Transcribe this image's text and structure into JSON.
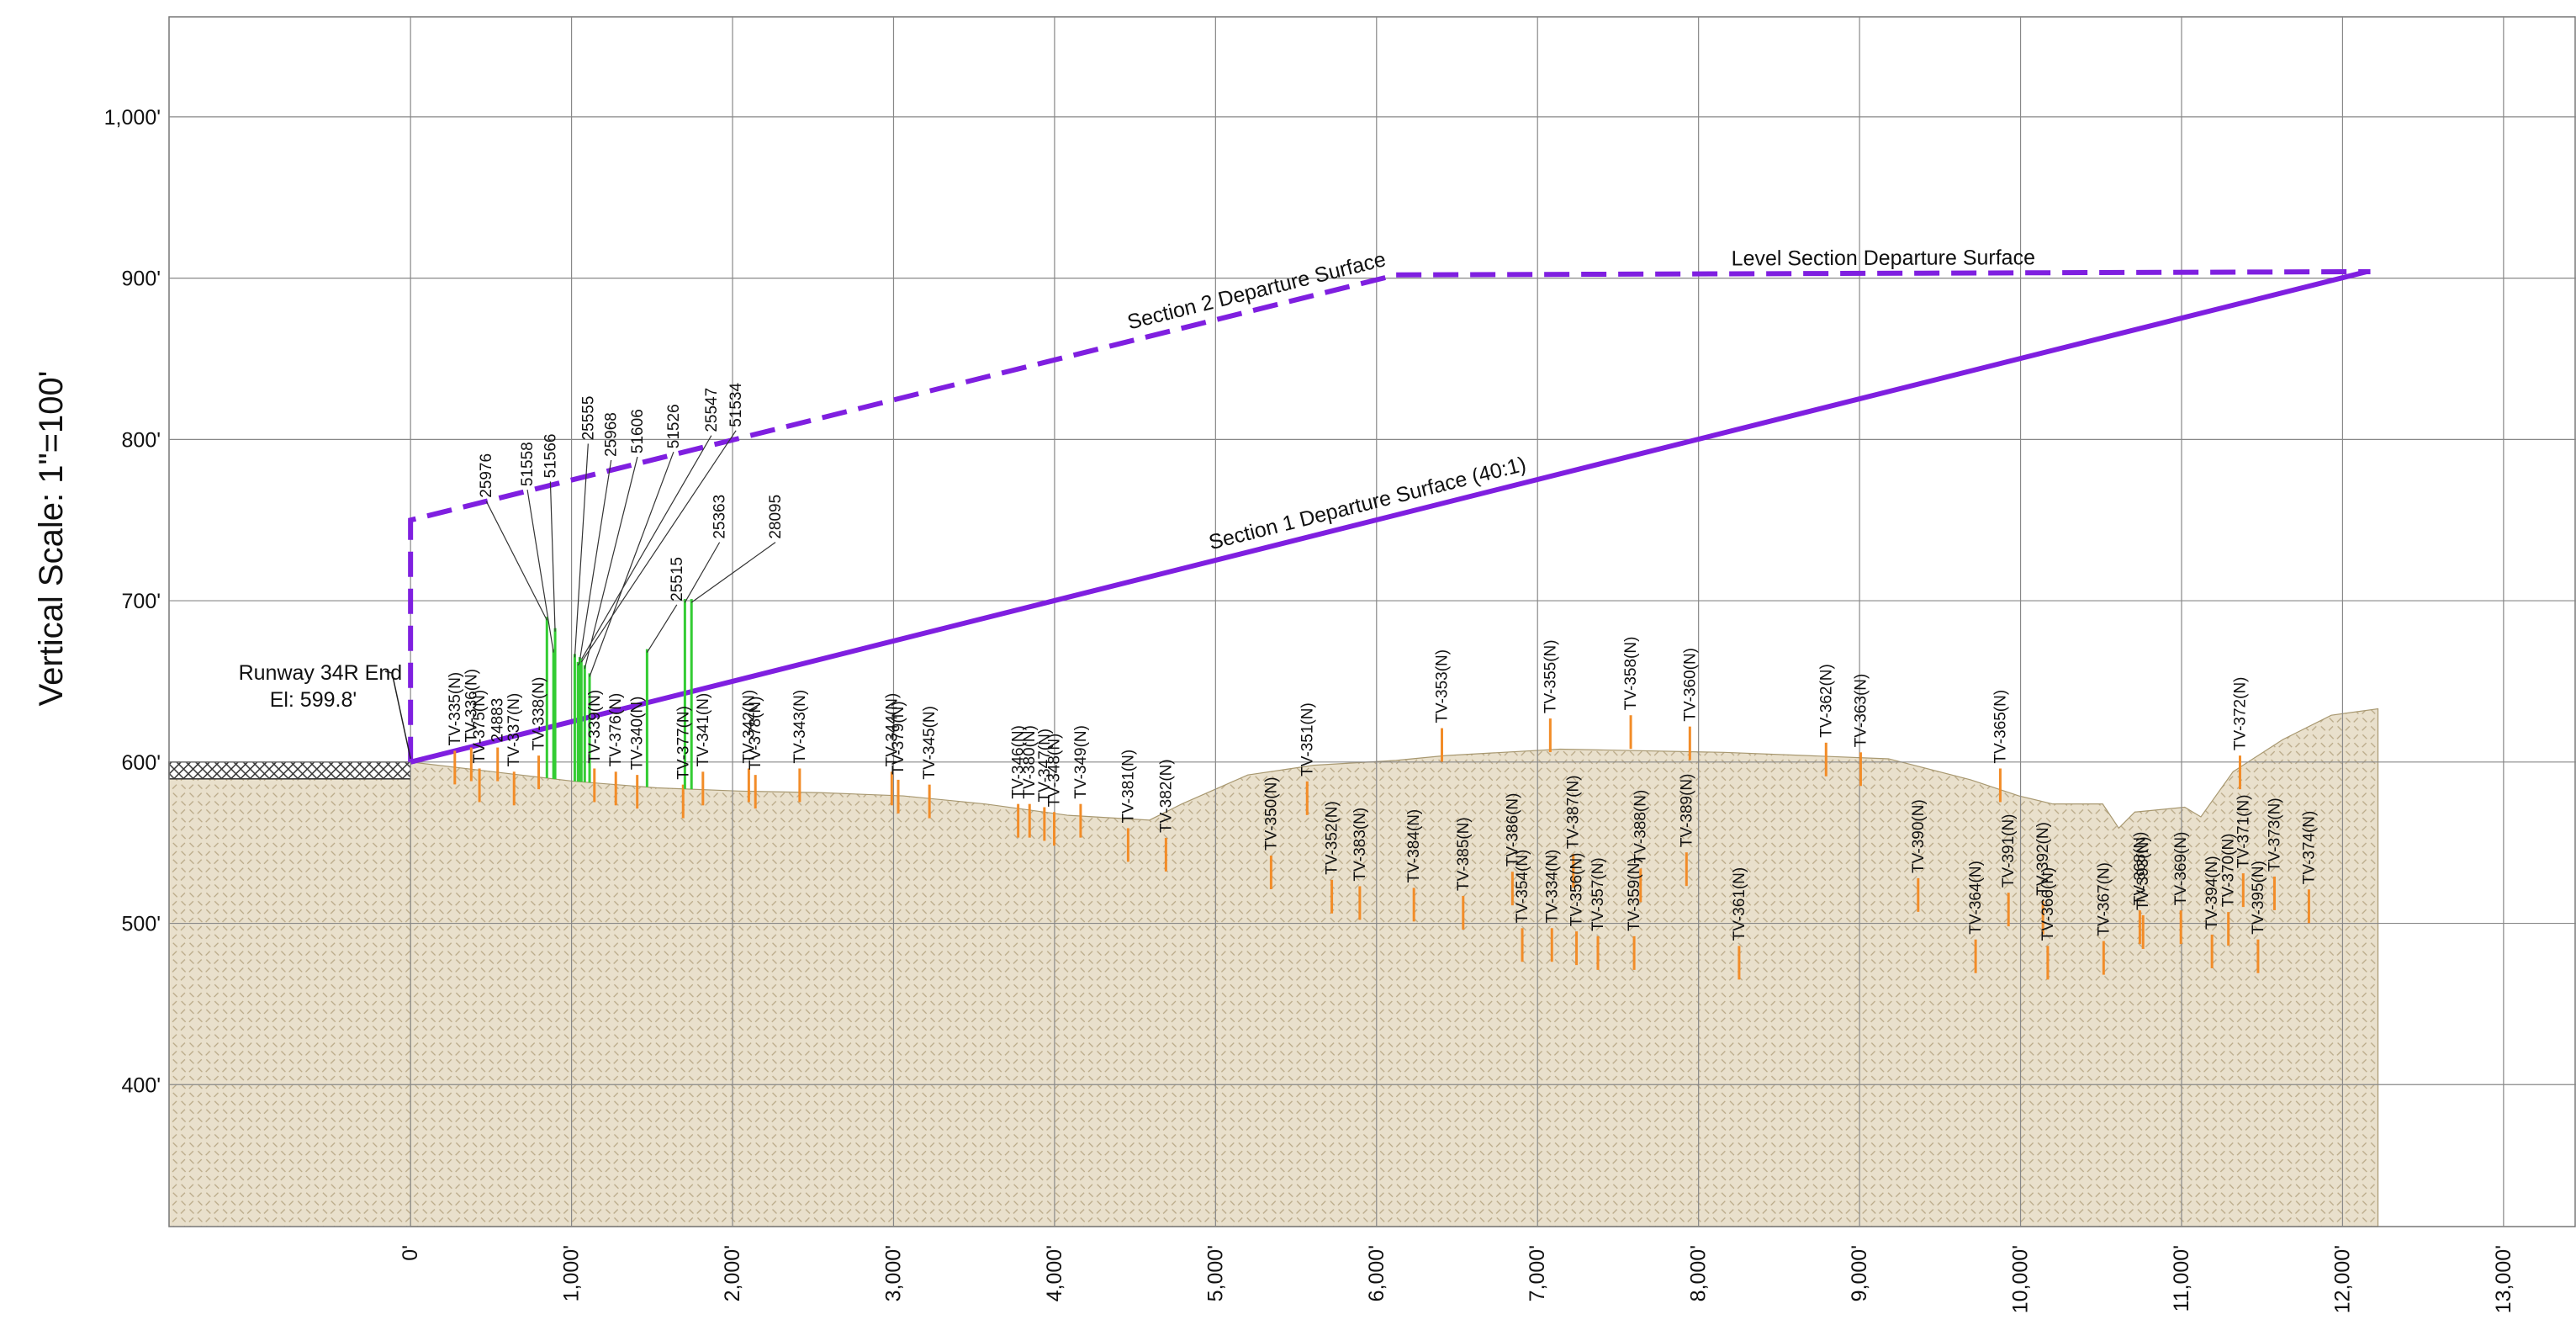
{
  "chart_data": {
    "type": "profile",
    "y_label": "Vertical Scale: 1\"=100'",
    "runway_label": "Runway 34R End",
    "runway_elevation_label": "El: 599.8'",
    "xlim": [
      -1500,
      13450
    ],
    "ylim": [
      312,
      1062
    ],
    "xticks": [
      {
        "value": 0,
        "label": "0'"
      },
      {
        "value": 1000,
        "label": "1,000'"
      },
      {
        "value": 2000,
        "label": "2,000'"
      },
      {
        "value": 3000,
        "label": "3,000'"
      },
      {
        "value": 4000,
        "label": "4,000'"
      },
      {
        "value": 5000,
        "label": "5,000'"
      },
      {
        "value": 6000,
        "label": "6,000'"
      },
      {
        "value": 7000,
        "label": "7,000'"
      },
      {
        "value": 8000,
        "label": "8,000'"
      },
      {
        "value": 9000,
        "label": "9,000'"
      },
      {
        "value": 10000,
        "label": "10,000'"
      },
      {
        "value": 11000,
        "label": "11,000'"
      },
      {
        "value": 12000,
        "label": "12,000'"
      },
      {
        "value": 13000,
        "label": "13,000'"
      }
    ],
    "yticks": [
      {
        "value": 400,
        "label": "400'"
      },
      {
        "value": 500,
        "label": "500'"
      },
      {
        "value": 600,
        "label": "600'"
      },
      {
        "value": 700,
        "label": "700'"
      },
      {
        "value": 800,
        "label": "800'"
      },
      {
        "value": 900,
        "label": "900'"
      },
      {
        "value": 1000,
        "label": "1,000'"
      }
    ],
    "grid": true,
    "terrain": {
      "color": "#e9e0cc",
      "x": [
        0,
        510,
        1020,
        1530,
        2040,
        2550,
        3060,
        3570,
        4080,
        4590,
        4790,
        5200,
        5610,
        6120,
        6430,
        7140,
        8160,
        8670,
        9180,
        9690,
        9990,
        10200,
        10510,
        10610,
        10710,
        11020,
        11120,
        11320,
        11630,
        11930,
        12220
      ],
      "values": [
        600,
        594,
        588,
        584,
        582,
        581,
        579,
        574,
        567,
        564,
        574,
        592,
        598,
        601,
        604,
        608,
        606,
        604,
        602,
        589,
        579,
        574,
        574,
        559,
        569,
        572,
        566,
        594,
        614,
        629,
        633
      ]
    },
    "surfaces": [
      {
        "name": "Section 1 Departure Surface (40:1)",
        "color": "#7f1fe0",
        "dashed": false,
        "x": [
          0,
          12150
        ],
        "values": [
          600,
          904
        ]
      },
      {
        "name": "Section 2 Departure Surface",
        "color": "#7f1fe0",
        "dashed": true,
        "x": [
          0,
          0,
          6122
        ],
        "values": [
          600,
          750,
          902
        ]
      },
      {
        "name": "Level Section Departure Surface",
        "color": "#7f1fe0",
        "dashed": true,
        "x": [
          6122,
          12173
        ],
        "values": [
          902,
          904
        ]
      }
    ],
    "obstacle_color": "#f28c28",
    "obstacles": [
      {
        "name": "TV-335(N)",
        "x": 275,
        "elevation": 607
      },
      {
        "name": "TV-336(N)",
        "x": 377,
        "elevation": 609
      },
      {
        "name": "TV-375(N)",
        "x": 428,
        "elevation": 596
      },
      {
        "name": "24883",
        "x": 541,
        "elevation": 609
      },
      {
        "name": "TV-337(N)",
        "x": 643,
        "elevation": 594
      },
      {
        "name": "TV-338(N)",
        "x": 796,
        "elevation": 604
      },
      {
        "name": "TV-339(N)",
        "x": 1142,
        "elevation": 596
      },
      {
        "name": "TV-376(N)",
        "x": 1275,
        "elevation": 594
      },
      {
        "name": "TV-340(N)",
        "x": 1408,
        "elevation": 592
      },
      {
        "name": "TV-377(N)",
        "x": 1693,
        "elevation": 586
      },
      {
        "name": "TV-341(N)",
        "x": 1816,
        "elevation": 594
      },
      {
        "name": "TV-342(N)",
        "x": 2101,
        "elevation": 596
      },
      {
        "name": "TV-378(N)",
        "x": 2142,
        "elevation": 592
      },
      {
        "name": "TV-343(N)",
        "x": 2417,
        "elevation": 596
      },
      {
        "name": "TV-344(N)",
        "x": 2989,
        "elevation": 594
      },
      {
        "name": "TV-379(N)",
        "x": 3029,
        "elevation": 589
      },
      {
        "name": "TV-345(N)",
        "x": 3223,
        "elevation": 586
      },
      {
        "name": "TV-346(N)",
        "x": 3774,
        "elevation": 574
      },
      {
        "name": "TV-380(N)",
        "x": 3845,
        "elevation": 574
      },
      {
        "name": "TV-347(N)",
        "x": 3937,
        "elevation": 572
      },
      {
        "name": "TV-348(N)",
        "x": 3998,
        "elevation": 569
      },
      {
        "name": "TV-349(N)",
        "x": 4162,
        "elevation": 574
      },
      {
        "name": "TV-381(N)",
        "x": 4457,
        "elevation": 559
      },
      {
        "name": "TV-382(N)",
        "x": 4692,
        "elevation": 553
      },
      {
        "name": "TV-350(N)",
        "x": 5345,
        "elevation": 542
      },
      {
        "name": "TV-351(N)",
        "x": 5569,
        "elevation": 588
      },
      {
        "name": "TV-352(N)",
        "x": 5722,
        "elevation": 527
      },
      {
        "name": "TV-383(N)",
        "x": 5896,
        "elevation": 523
      },
      {
        "name": "TV-384(N)",
        "x": 6232,
        "elevation": 522
      },
      {
        "name": "TV-353(N)",
        "x": 6406,
        "elevation": 621
      },
      {
        "name": "TV-385(N)",
        "x": 6538,
        "elevation": 517
      },
      {
        "name": "TV-386(N)",
        "x": 6844,
        "elevation": 532
      },
      {
        "name": "TV-354(N)",
        "x": 6905,
        "elevation": 497
      },
      {
        "name": "TV-355(N)",
        "x": 7079,
        "elevation": 627
      },
      {
        "name": "TV-334(N)",
        "x": 7089,
        "elevation": 497
      },
      {
        "name": "TV-387(N)",
        "x": 7222,
        "elevation": 543
      },
      {
        "name": "TV-356(N)",
        "x": 7242,
        "elevation": 495
      },
      {
        "name": "TV-357(N)",
        "x": 7375,
        "elevation": 492
      },
      {
        "name": "TV-358(N)",
        "x": 7579,
        "elevation": 629
      },
      {
        "name": "TV-359(N)",
        "x": 7600,
        "elevation": 492
      },
      {
        "name": "TV-388(N)",
        "x": 7640,
        "elevation": 534
      },
      {
        "name": "TV-389(N)",
        "x": 7925,
        "elevation": 544
      },
      {
        "name": "TV-360(N)",
        "x": 7946,
        "elevation": 622
      },
      {
        "name": "TV-361(N)",
        "x": 8252,
        "elevation": 486
      },
      {
        "name": "TV-362(N)",
        "x": 8792,
        "elevation": 612
      },
      {
        "name": "TV-363(N)",
        "x": 9007,
        "elevation": 606
      },
      {
        "name": "TV-390(N)",
        "x": 9364,
        "elevation": 528
      },
      {
        "name": "TV-364(N)",
        "x": 9721,
        "elevation": 490
      },
      {
        "name": "TV-365(N)",
        "x": 9874,
        "elevation": 596
      },
      {
        "name": "TV-391(N)",
        "x": 9925,
        "elevation": 519
      },
      {
        "name": "TV-392(N)",
        "x": 10139,
        "elevation": 514
      },
      {
        "name": "TV-366(N)",
        "x": 10169,
        "elevation": 486
      },
      {
        "name": "TV-367(N)",
        "x": 10516,
        "elevation": 489
      },
      {
        "name": "TV-368(N)",
        "x": 10741,
        "elevation": 508
      },
      {
        "name": "TV-393(N)",
        "x": 10761,
        "elevation": 505
      },
      {
        "name": "TV-369(N)",
        "x": 10996,
        "elevation": 508
      },
      {
        "name": "TV-394(N)",
        "x": 11189,
        "elevation": 493
      },
      {
        "name": "TV-370(N)",
        "x": 11291,
        "elevation": 507
      },
      {
        "name": "TV-372(N)",
        "x": 11363,
        "elevation": 604
      },
      {
        "name": "TV-371(N)",
        "x": 11383,
        "elevation": 531
      },
      {
        "name": "TV-395(N)",
        "x": 11475,
        "elevation": 490
      },
      {
        "name": "TV-373(N)",
        "x": 11577,
        "elevation": 529
      },
      {
        "name": "TV-374(N)",
        "x": 11791,
        "elevation": 521
      }
    ],
    "tall_obstacle_color": "#33cc33",
    "tall_obstacles": [
      {
        "name": "25976",
        "x": 847,
        "elevation": 690
      },
      {
        "name": "51558",
        "x": 888,
        "elevation": 670
      },
      {
        "name": "51566",
        "x": 898,
        "elevation": 683
      },
      {
        "name": "25555",
        "x": 1020,
        "elevation": 667
      },
      {
        "name": "25968",
        "x": 1051,
        "elevation": 665
      },
      {
        "name": "51606",
        "x": 1082,
        "elevation": 660
      },
      {
        "name": "51526",
        "x": 1112,
        "elevation": 655
      },
      {
        "name": "25547",
        "x": 1040,
        "elevation": 662
      },
      {
        "name": "51534",
        "x": 1061,
        "elevation": 664
      },
      {
        "name": "25515",
        "x": 1469,
        "elevation": 670
      },
      {
        "name": "25363",
        "x": 1704,
        "elevation": 701
      },
      {
        "name": "28095",
        "x": 1745,
        "elevation": 701
      }
    ]
  }
}
